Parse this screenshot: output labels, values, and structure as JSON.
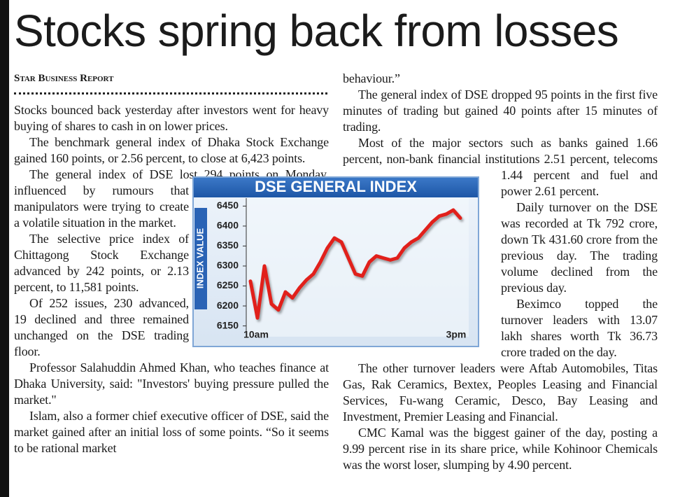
{
  "header": {
    "title": "Stocks spring back from losses"
  },
  "byline": "Star Business Report",
  "columns": [
    {
      "paragraphs": [
        "Stocks bounced back yesterday after investors went for heavy buying of shares to cash in on lower prices.",
        "The benchmark general index of Dhaka Stock Exchange gained 160 points, or 2.56 percent, to close at 6,423 points.",
        "The general index of DSE lost 294 points on Monday, influenced by rumours that manipulators were trying to create a volatile situation in the market.",
        "The selective price index of Chittagong Stock Exchange advanced by 242 points, or 2.13 percent, to 11,581 points.",
        "Of 252 issues, 230 advanced, 19 declined and three remained unchanged on the DSE trading floor.",
        "Professor Salahuddin Ahmed Khan, who teaches finance at Dhaka University, said: \"Investors' buying pressure pulled the market.\"",
        "Islam, also a former chief executive officer of DSE, said the market gained after an initial loss of some points. “So it seems to be rational market"
      ]
    },
    {
      "paragraphs": [
        "behaviour.”",
        "The general index of DSE dropped 95 points in the first five minutes of trading but gained 40 points after 15 minutes of trading.",
        "Most of the major sectors such as banks gained 1.66 percent, non-bank financial institutions 2.51 percent, telecoms 1.44 percent and fuel and power 2.61 percent.",
        "Daily turnover on the DSE was recorded at Tk 792 crore, down Tk 431.60 crore from the previous day. The trading volume declined from the previous day.",
        "Beximco topped the turnover leaders with 13.07 lakh shares worth Tk 36.73 crore traded on the day.",
        "The other turnover leaders were Aftab Automobiles, Titas Gas, Rak Ceramics, Bextex, Peoples Leasing and Financial Services, Fu-wang Ceramic, Desco, Bay Leasing and Investment, Premier Leasing and Financial.",
        "CMC Kamal was the biggest gainer of the day, posting a 9.99 percent rise in its share price, while Kohinoor Chemicals was the worst loser, slumping by 4.90 percent."
      ]
    }
  ],
  "chart_data": {
    "type": "line",
    "title": "DSE GENERAL INDEX",
    "y_label": "INDEX VALUE",
    "x": [
      "10am",
      null,
      null,
      null,
      null,
      null,
      null,
      null,
      null,
      null,
      null,
      null,
      null,
      null,
      null,
      null,
      null,
      null,
      null,
      null,
      null,
      null,
      null,
      null,
      null,
      null,
      null,
      null,
      null,
      null,
      "3pm"
    ],
    "series": [
      {
        "color": "#e1201b",
        "values": [
          6262,
          6170,
          6300,
          6205,
          6190,
          6235,
          6220,
          6245,
          6265,
          6280,
          6310,
          6345,
          6370,
          6360,
          6320,
          6280,
          6275,
          6310,
          6325,
          6320,
          6315,
          6320,
          6345,
          6360,
          6370,
          6390,
          6410,
          6425,
          6430,
          6440,
          6420
        ]
      }
    ],
    "ylim": [
      6130,
      6470
    ],
    "yticks": [
      6150,
      6200,
      6250,
      6300,
      6350,
      6400,
      6450
    ]
  }
}
